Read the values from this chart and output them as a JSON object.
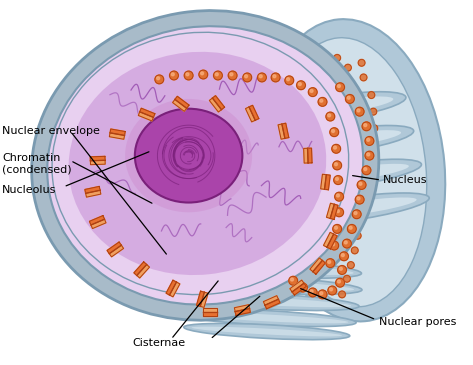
{
  "bg_color": "#ffffff",
  "labels": {
    "nuclear_envelope": "Nuclear envelope",
    "chromatin": "Chromatin\n(condensed)",
    "nucleolus": "Nucleolus",
    "nuclear_pores": "Nuclear pores",
    "nucleus": "Nucleus",
    "cisternae": "Cisternae"
  },
  "colors": {
    "outer_shell": "#a8bbc9",
    "outer_shell_dark": "#7a9ab0",
    "outer_shell_light": "#c5d5e0",
    "inner_nucleus_fill": "#cc99d9",
    "inner_nucleus_light": "#e8d0f0",
    "nucleolus_fill": "#aa44aa",
    "nucleolus_dark": "#7a207a",
    "nucleolus_glow": "#cc88cc",
    "er_blue": "#b0c8d8",
    "er_light": "#d0e0ea",
    "er_dark": "#8aaabf",
    "pore_orange": "#e87030",
    "pore_light": "#f0a060",
    "pore_dark": "#b04010",
    "dot_orange": "#e07030",
    "dot_dark": "#b04010",
    "chromatin_line": "#9040a8",
    "text_color": "#000000"
  }
}
